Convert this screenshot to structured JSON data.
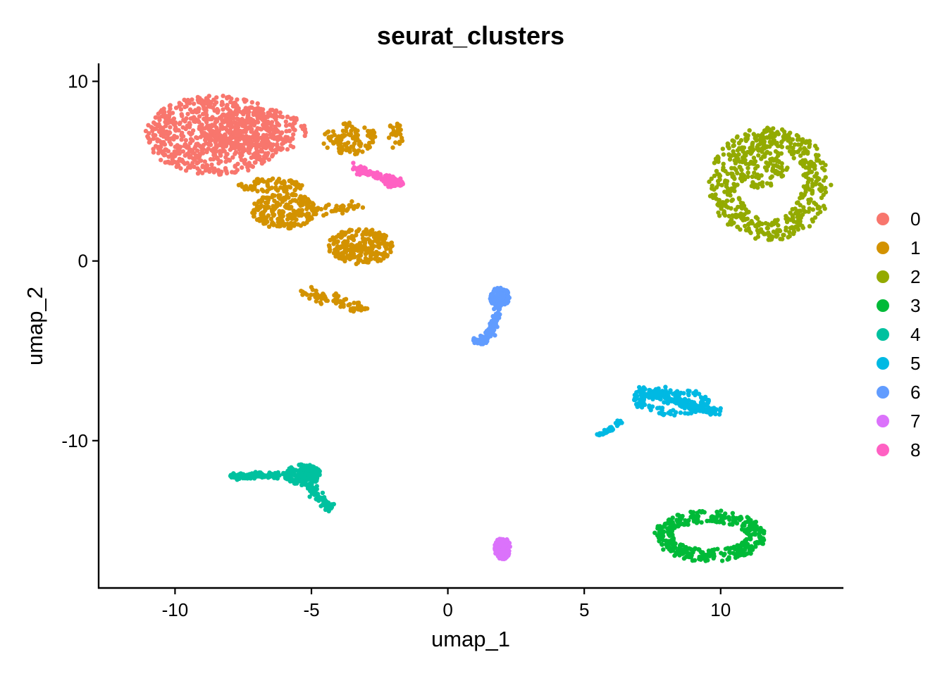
{
  "chart_data": {
    "type": "scatter",
    "title": "seurat_clusters",
    "xlabel": "umap_1",
    "ylabel": "umap_2",
    "xlim": [
      -12.8,
      14.5
    ],
    "ylim": [
      -18.2,
      11.0
    ],
    "x_ticks": [
      -10,
      -5,
      0,
      5,
      10
    ],
    "x_tick_labels": [
      "-10",
      "-5",
      "0",
      "5",
      "10"
    ],
    "y_ticks": [
      -10,
      0,
      10
    ],
    "y_tick_labels": [
      "-10",
      "0",
      "10"
    ],
    "grid": false,
    "legend_position": "right",
    "legend": [
      {
        "label": "0",
        "color": "#F8766D"
      },
      {
        "label": "1",
        "color": "#D39200"
      },
      {
        "label": "2",
        "color": "#93AA00"
      },
      {
        "label": "3",
        "color": "#00BA38"
      },
      {
        "label": "4",
        "color": "#00C19F"
      },
      {
        "label": "5",
        "color": "#00B9E3"
      },
      {
        "label": "6",
        "color": "#619CFF"
      },
      {
        "label": "7",
        "color": "#DB72FB"
      },
      {
        "label": "8",
        "color": "#FF61C3"
      }
    ],
    "clusters": [
      {
        "label": "0",
        "regions": [
          {
            "shape": "blob",
            "cx": -8.5,
            "cy": 7.0,
            "rx": 2.6,
            "ry": 2.2,
            "n": 700
          },
          {
            "shape": "blob",
            "cx": -7.0,
            "cy": 7.2,
            "rx": 1.8,
            "ry": 1.3,
            "n": 250
          }
        ]
      },
      {
        "label": "1",
        "regions": [
          {
            "shape": "blob",
            "cx": -6.0,
            "cy": 2.8,
            "rx": 1.2,
            "ry": 1.0,
            "n": 220
          },
          {
            "shape": "blob",
            "cx": -6.5,
            "cy": 4.2,
            "rx": 1.2,
            "ry": 0.4,
            "n": 80
          },
          {
            "shape": "blob",
            "cx": -3.2,
            "cy": 0.8,
            "rx": 1.2,
            "ry": 1.0,
            "n": 260
          },
          {
            "shape": "blob",
            "cx": -3.6,
            "cy": 6.8,
            "rx": 1.0,
            "ry": 0.9,
            "n": 110
          },
          {
            "shape": "blob",
            "cx": -1.9,
            "cy": 7.0,
            "rx": 0.3,
            "ry": 0.8,
            "n": 25
          },
          {
            "shape": "line",
            "x0": -5.2,
            "y0": -1.7,
            "x1": -3.0,
            "y1": -2.7,
            "spread": 0.3,
            "n": 80
          },
          {
            "shape": "line",
            "x0": -5.0,
            "y0": 2.8,
            "x1": -3.2,
            "y1": 3.0,
            "spread": 0.3,
            "n": 40
          }
        ]
      },
      {
        "label": "2",
        "regions": [
          {
            "shape": "ring",
            "cx": 11.8,
            "cy": 4.3,
            "rx": 1.7,
            "ry": 2.6,
            "thickness": 0.55,
            "n": 500
          },
          {
            "shape": "blob",
            "cx": 11.5,
            "cy": 5.2,
            "rx": 1.0,
            "ry": 1.2,
            "n": 120
          }
        ]
      },
      {
        "label": "3",
        "regions": [
          {
            "shape": "ring",
            "cx": 9.6,
            "cy": -15.3,
            "rx": 1.7,
            "ry": 1.1,
            "thickness": 0.35,
            "n": 380
          }
        ]
      },
      {
        "label": "4",
        "regions": [
          {
            "shape": "line",
            "x0": -8.0,
            "y0": -12.0,
            "x1": -5.8,
            "y1": -11.9,
            "spread": 0.17,
            "n": 140
          },
          {
            "shape": "blob",
            "cx": -5.3,
            "cy": -11.9,
            "rx": 0.65,
            "ry": 0.6,
            "n": 180
          },
          {
            "shape": "line",
            "x0": -5.2,
            "y0": -12.4,
            "x1": -4.3,
            "y1": -13.8,
            "spread": 0.22,
            "n": 80
          }
        ]
      },
      {
        "label": "5",
        "regions": [
          {
            "shape": "ring",
            "cx": 8.2,
            "cy": -7.8,
            "rx": 1.2,
            "ry": 0.6,
            "thickness": 0.2,
            "n": 120
          },
          {
            "shape": "line",
            "x0": 7.0,
            "y0": -7.2,
            "x1": 9.8,
            "y1": -8.4,
            "spread": 0.25,
            "n": 180
          },
          {
            "shape": "line",
            "x0": 5.5,
            "y0": -9.7,
            "x1": 6.4,
            "y1": -8.9,
            "spread": 0.1,
            "n": 40
          }
        ]
      },
      {
        "label": "6",
        "regions": [
          {
            "shape": "blob",
            "cx": 1.9,
            "cy": -2.0,
            "rx": 0.4,
            "ry": 0.5,
            "n": 100
          },
          {
            "shape": "line",
            "x0": 1.9,
            "y0": -2.5,
            "x1": 1.5,
            "y1": -4.2,
            "spread": 0.15,
            "n": 70
          },
          {
            "shape": "blob",
            "cx": 1.2,
            "cy": -4.4,
            "rx": 0.3,
            "ry": 0.25,
            "n": 40
          }
        ]
      },
      {
        "label": "7",
        "regions": [
          {
            "shape": "blob",
            "cx": 2.0,
            "cy": -16.0,
            "rx": 0.3,
            "ry": 0.6,
            "n": 140
          }
        ]
      },
      {
        "label": "8",
        "regions": [
          {
            "shape": "line",
            "x0": -3.6,
            "y0": 5.3,
            "x1": -1.8,
            "y1": 4.3,
            "spread": 0.2,
            "n": 80
          },
          {
            "shape": "blob",
            "cx": -2.0,
            "cy": 4.4,
            "rx": 0.4,
            "ry": 0.3,
            "n": 40
          }
        ]
      }
    ]
  }
}
